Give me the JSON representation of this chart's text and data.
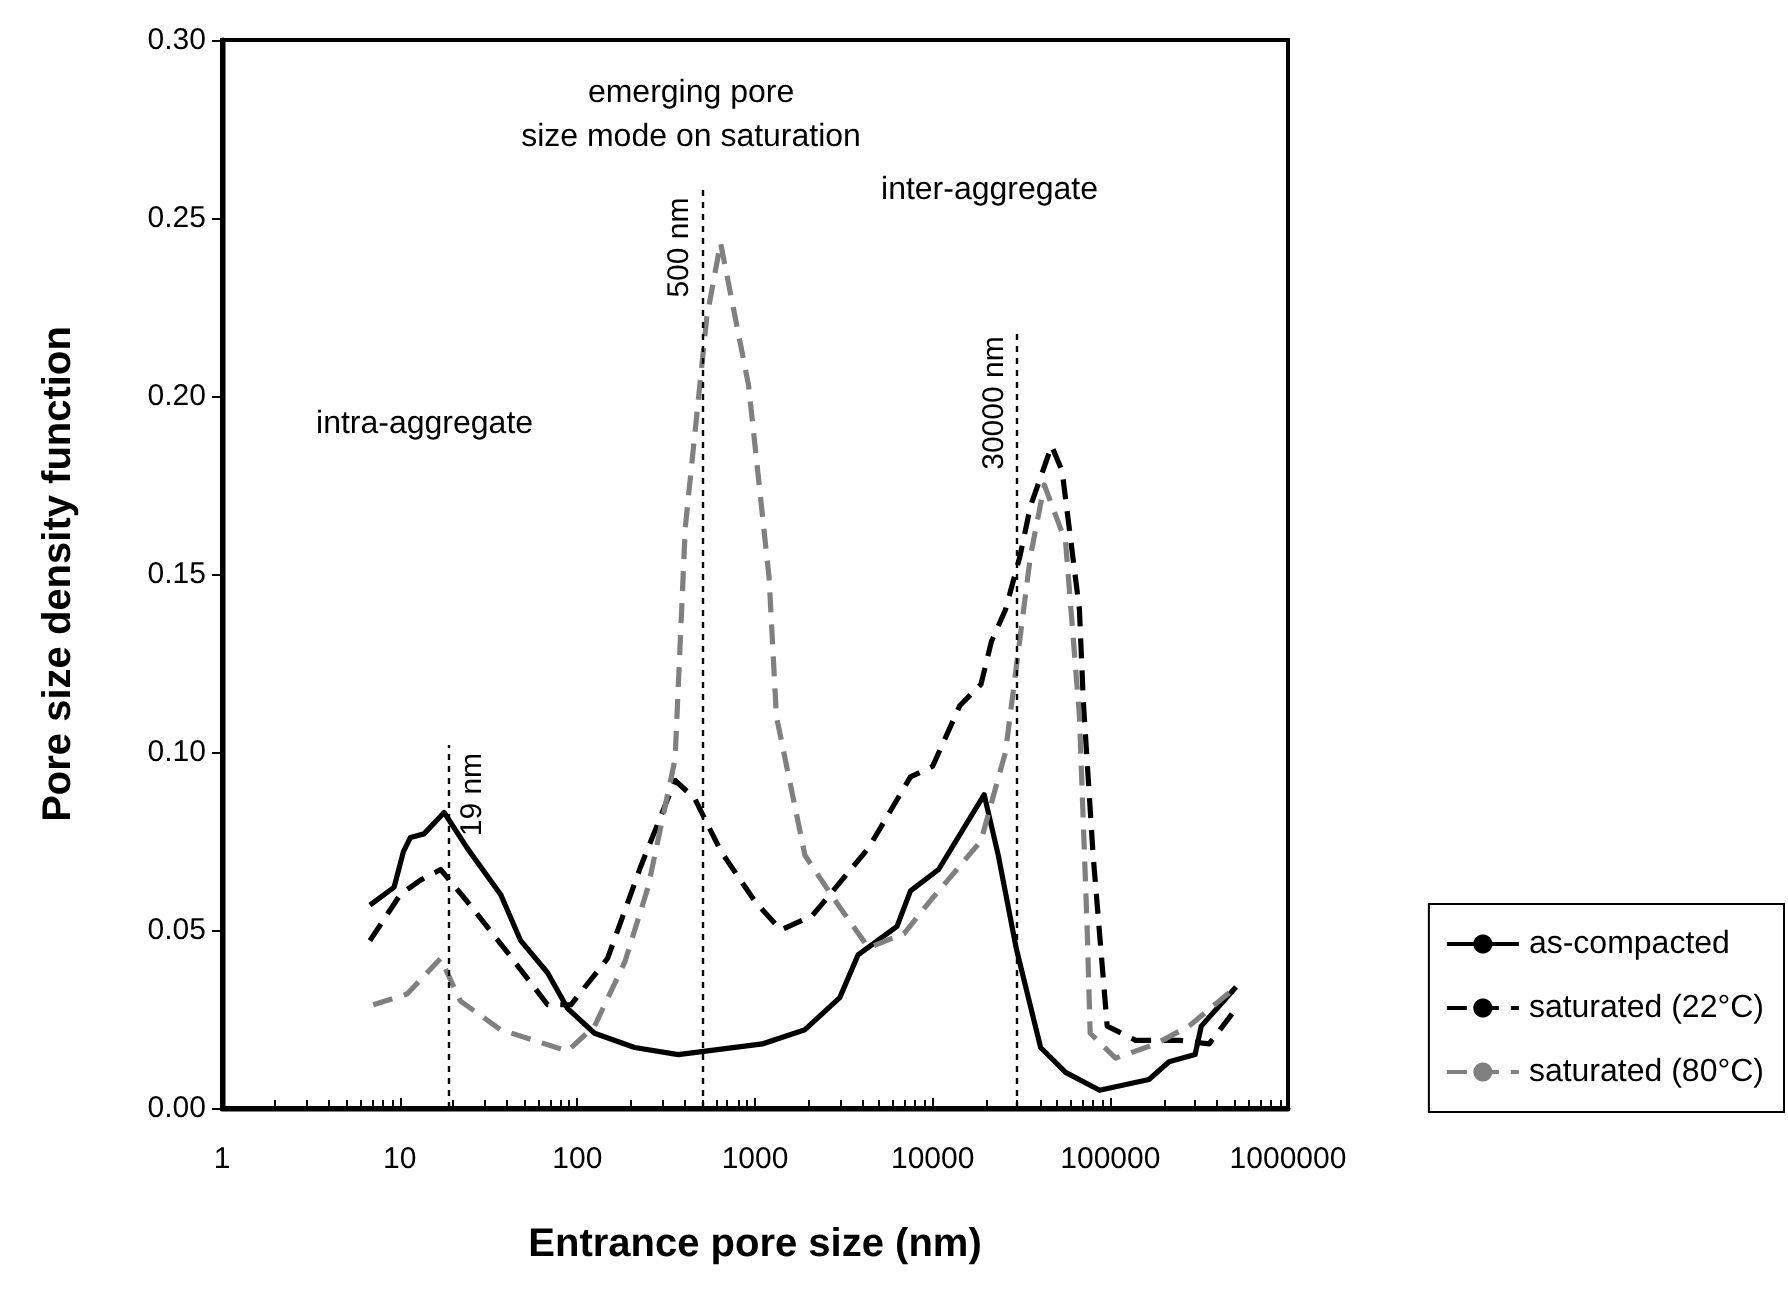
{
  "chart_data": {
    "type": "line",
    "xlabel": "Entrance pore size (nm)",
    "ylabel": "Pore size density function",
    "log": "x",
    "xlim": [
      1,
      1000000
    ],
    "xticks": [
      1,
      10,
      100,
      1000,
      10000,
      100000,
      1000000
    ],
    "ylim": [
      0,
      0.3
    ],
    "yticks": [
      {
        "value": 0,
        "label": "0.00"
      },
      {
        "value": 0.05,
        "label": "0.05"
      },
      {
        "value": 0.1,
        "label": "0.10"
      },
      {
        "value": 0.15,
        "label": "0.15"
      },
      {
        "value": 0.2,
        "label": "0.20"
      },
      {
        "value": 0.25,
        "label": "0.25"
      },
      {
        "value": 0.3,
        "label": "0.30"
      }
    ],
    "grid": false,
    "legend": "right",
    "marker": "none",
    "series": [
      {
        "name": "as-compacted",
        "color": "#000000",
        "line_style": "solid",
        "x": [
          6.8,
          9.3,
          10.5,
          11.5,
          13.7,
          17.8,
          24,
          37,
          48,
          68,
          88,
          125,
          210,
          370,
          1100,
          1910,
          3000,
          3800,
          6300,
          7500,
          10800,
          19500,
          23400,
          29500,
          40500,
          56000,
          87000,
          165000,
          214000,
          300000,
          325000,
          510000
        ],
        "values": [
          0.057,
          0.062,
          0.072,
          0.076,
          0.077,
          0.083,
          0.073,
          0.06,
          0.047,
          0.038,
          0.028,
          0.021,
          0.017,
          0.015,
          0.018,
          0.022,
          0.031,
          0.043,
          0.051,
          0.061,
          0.067,
          0.088,
          0.071,
          0.045,
          0.017,
          0.01,
          0.005,
          0.008,
          0.013,
          0.015,
          0.023,
          0.034
        ]
      },
      {
        "name": "saturated (22°C)",
        "color": "#000000",
        "line_style": "dashed",
        "x": [
          6.8,
          10.1,
          13.1,
          17,
          24,
          40,
          68,
          92,
          148,
          228,
          355,
          457,
          645,
          1000,
          1400,
          2100,
          4350,
          7500,
          10000,
          14200,
          18700,
          21400,
          25700,
          31000,
          35500,
          46700,
          53500,
          67000,
          70500,
          80000,
          96000,
          139000,
          245000,
          360000,
          530000
        ],
        "values": [
          0.047,
          0.06,
          0.064,
          0.067,
          0.058,
          0.044,
          0.029,
          0.029,
          0.042,
          0.068,
          0.092,
          0.087,
          0.072,
          0.058,
          0.05,
          0.054,
          0.073,
          0.093,
          0.096,
          0.113,
          0.119,
          0.131,
          0.14,
          0.155,
          0.169,
          0.186,
          0.179,
          0.14,
          0.114,
          0.071,
          0.023,
          0.019,
          0.019,
          0.018,
          0.029
        ]
      },
      {
        "name": "saturated (80°C)",
        "color": "#808080",
        "line_style": "dashed",
        "x": [
          7.1,
          11,
          17,
          22,
          37,
          88,
          125,
          185,
          250,
          355,
          405,
          535,
          640,
          920,
          1200,
          1320,
          1910,
          2760,
          4350,
          6900,
          10000,
          18700,
          25700,
          35500,
          42500,
          56000,
          67000,
          74000,
          77000,
          107000,
          180000,
          277000,
          510000
        ],
        "values": [
          0.029,
          0.032,
          0.042,
          0.03,
          0.022,
          0.016,
          0.023,
          0.041,
          0.062,
          0.098,
          0.163,
          0.222,
          0.243,
          0.203,
          0.149,
          0.11,
          0.071,
          0.059,
          0.045,
          0.049,
          0.059,
          0.075,
          0.1,
          0.155,
          0.175,
          0.159,
          0.11,
          0.051,
          0.021,
          0.014,
          0.018,
          0.023,
          0.034
        ]
      }
    ],
    "ref_lines": [
      {
        "axis": "x",
        "value": 19,
        "label": "19 nm",
        "line_style": "dotted"
      },
      {
        "axis": "x",
        "value": 500,
        "label": "500 nm",
        "line_style": "dotted"
      },
      {
        "axis": "x",
        "value": 30000,
        "label": "30000 nm",
        "line_style": "dotted"
      }
    ],
    "annotations": [
      "intra-aggregate",
      "emerging pore\nsize mode on saturation",
      "inter-aggregate"
    ]
  }
}
